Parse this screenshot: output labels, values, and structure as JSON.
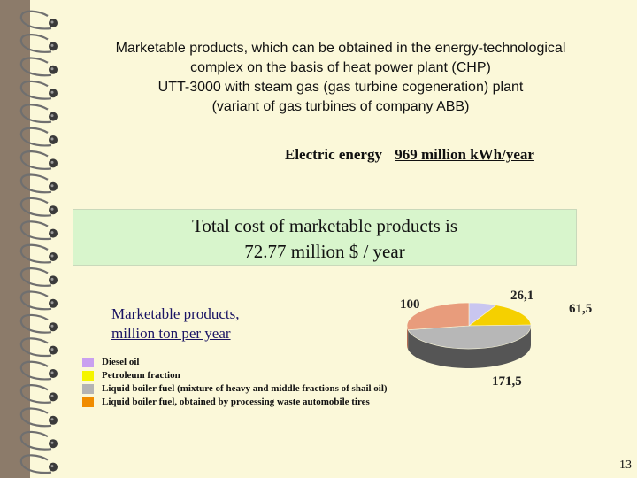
{
  "title_lines": [
    "Marketable products, which can be obtained in the energy-technological",
    "complex on the basis of heat power plant (CHP)",
    "UTT-3000 with steam gas (gas turbine cogeneration) plant",
    "(variant of gas turbines of company ABB)"
  ],
  "energy": {
    "label": "Electric energy",
    "value": "969 million kWh/year"
  },
  "cost": {
    "line1": "Total cost of marketable products is",
    "line2": "72.77 million $ / year"
  },
  "products_title": {
    "line1": "Marketable products,",
    "line2": "million ton per year"
  },
  "chart_data": {
    "type": "pie",
    "values": [
      26.1,
      61.5,
      171.5,
      100
    ],
    "labels": [
      "26,1",
      "61,5",
      "171,5",
      "100"
    ],
    "series_names": [
      "Diesel oil",
      "Petroleum fraction",
      "Liquid boiler fuel (mixture of heavy and middle fractions of shail oil)",
      "Liquid boiler fuel, obtained by processing waste automobile tires"
    ],
    "colors": [
      "#c9c6f0",
      "#f5d000",
      "#b7b7b7",
      "#e89c7c"
    ],
    "legend_colors": [
      "#c9a0f0",
      "#f5f500",
      "#b4b4b4",
      "#f08c00"
    ],
    "style": "3d",
    "legend": "bottom-left"
  },
  "page_number": "13"
}
